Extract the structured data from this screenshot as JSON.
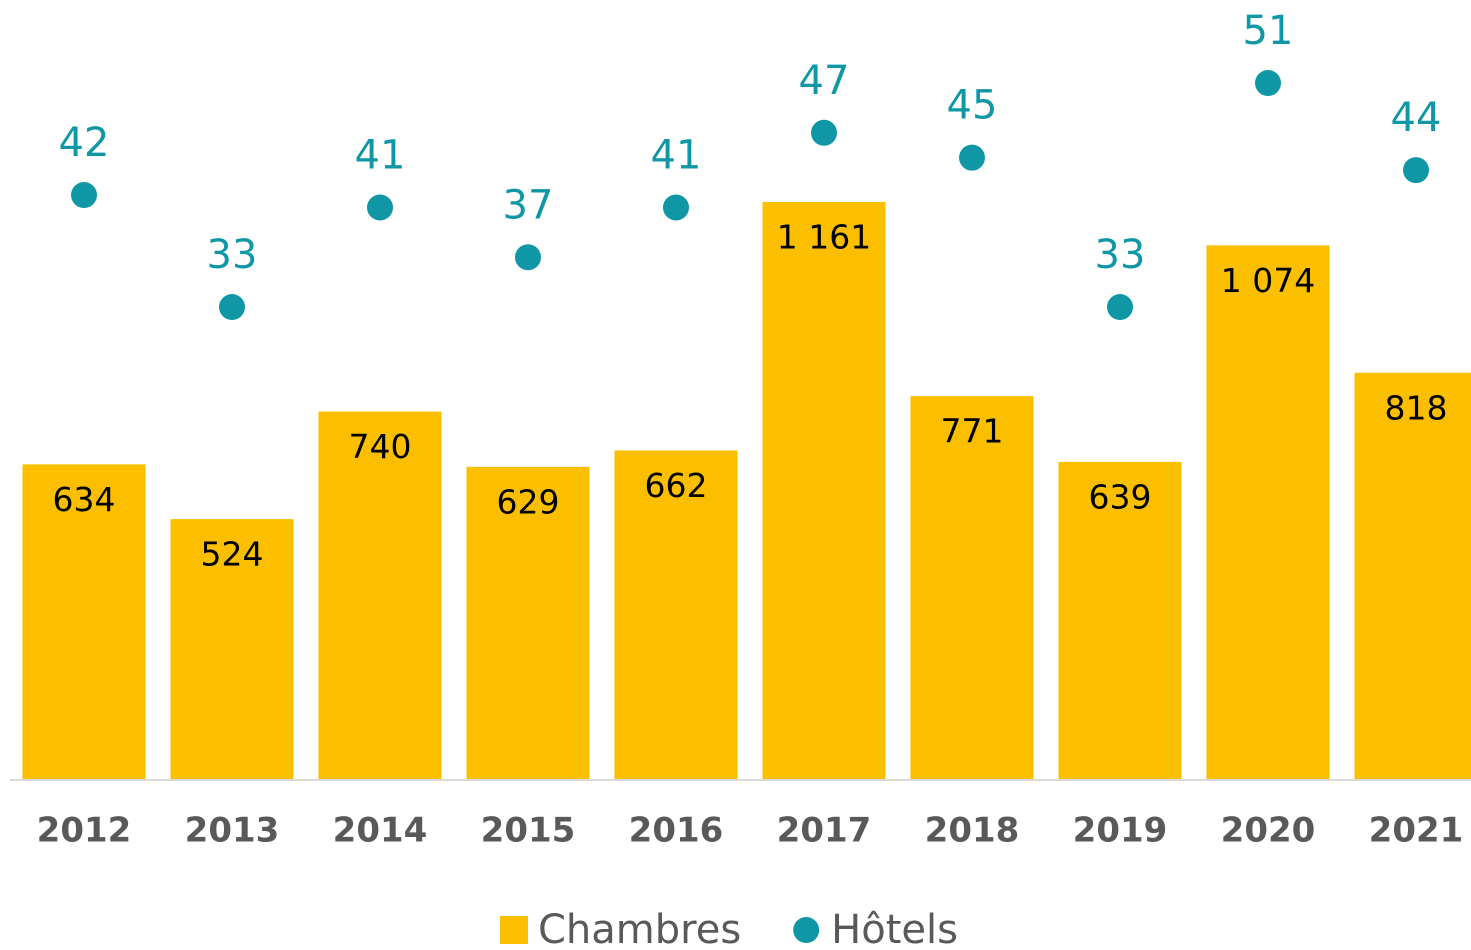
{
  "chart_data": {
    "type": "bar_dot",
    "categories": [
      "2012",
      "2013",
      "2014",
      "2015",
      "2016",
      "2017",
      "2018",
      "2019",
      "2020",
      "2021"
    ],
    "series": [
      {
        "name": "Chambres",
        "color": "#fcbf00",
        "values": [
          634,
          524,
          740,
          629,
          662,
          1161,
          771,
          639,
          1074,
          818
        ],
        "value_labels": [
          "634",
          "524",
          "740",
          "629",
          "662",
          "1 161",
          "771",
          "639",
          "1 074",
          "818"
        ]
      },
      {
        "name": "Hôtels",
        "color": "#0f97a6",
        "axis": "y2",
        "values": [
          42,
          33,
          41,
          37,
          41,
          47,
          45,
          33,
          51,
          44
        ]
      }
    ],
    "ylim": [
      0,
      1400
    ],
    "y2lim": [
      -5,
      51
    ],
    "legend": "bottom"
  }
}
